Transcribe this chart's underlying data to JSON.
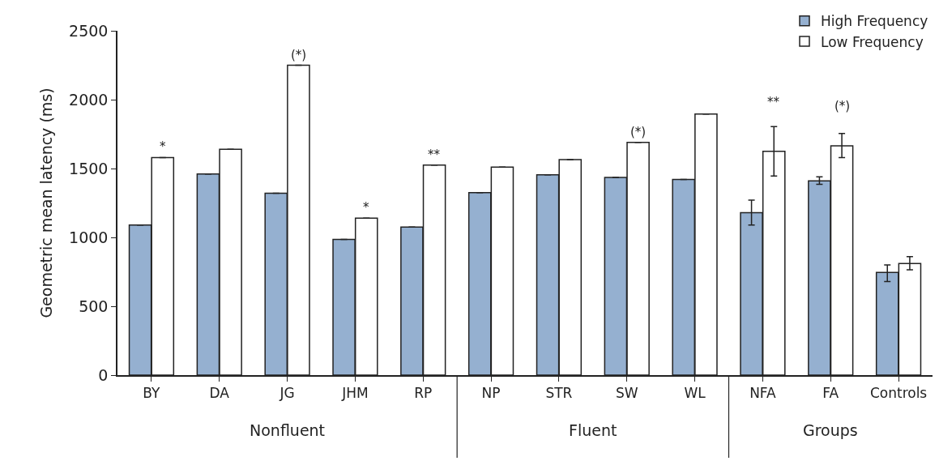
{
  "chart_data": {
    "type": "bar",
    "ylabel": "Geometric mean latency (ms)",
    "categories": [
      "BY",
      "DA",
      "JG",
      "JHM",
      "RP",
      "NP",
      "STR",
      "SW",
      "WL",
      "NFA",
      "FA",
      "Controls"
    ],
    "series": [
      {
        "name": "High Frequency",
        "color": "#95b0d0",
        "values": [
          1090,
          1460,
          1320,
          985,
          1075,
          1325,
          1455,
          1435,
          1420,
          1180,
          1410,
          745
        ],
        "errors": [
          null,
          null,
          null,
          null,
          null,
          null,
          null,
          null,
          null,
          [
            1090,
            1270
          ],
          [
            1385,
            1440
          ],
          [
            680,
            800
          ]
        ]
      },
      {
        "name": "Low Frequency",
        "color": "#ffffff",
        "values": [
          1580,
          1640,
          2250,
          1140,
          1525,
          1510,
          1565,
          1690,
          1895,
          1625,
          1665,
          810
        ],
        "errors": [
          null,
          null,
          null,
          null,
          null,
          null,
          null,
          null,
          null,
          [
            1445,
            1805
          ],
          [
            1580,
            1755
          ],
          [
            765,
            860
          ]
        ]
      }
    ],
    "ylim": [
      0,
      2500
    ],
    "yticks": [
      0,
      500,
      1000,
      1500,
      2000,
      2500
    ],
    "legend": "top right",
    "annotations": [
      {
        "text": "*",
        "x": "BY",
        "y": 1580
      },
      {
        "text": "(*)",
        "x": "JG",
        "y": 2250
      },
      {
        "text": "*",
        "x": "JHM",
        "y": 1140
      },
      {
        "text": "**",
        "x": "RP",
        "y": 1525
      },
      {
        "text": "(*)",
        "x": "SW",
        "y": 1690
      },
      "**",
      "(*)",
      "Nonfluent",
      "Fluent",
      "Groups"
    ]
  }
}
